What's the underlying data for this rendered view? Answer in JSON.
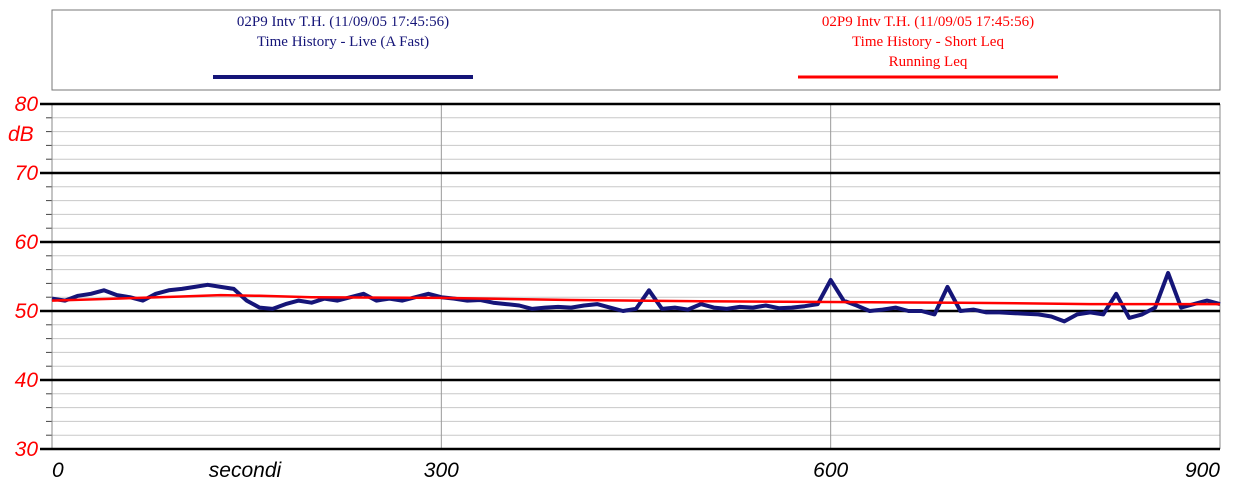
{
  "chart_data": {
    "type": "line",
    "xlabel": "secondi",
    "ylabel": "dB",
    "xlim": [
      0,
      900
    ],
    "xticks": [
      0,
      300,
      600,
      900
    ],
    "ylim": [
      30,
      80
    ],
    "yticks": [
      30,
      40,
      50,
      60,
      70,
      80
    ],
    "yminorticks": [
      32,
      34,
      36,
      38,
      42,
      44,
      46,
      48,
      52,
      54,
      56,
      58,
      62,
      64,
      66,
      68,
      72,
      74,
      76,
      78
    ],
    "grid": true,
    "series": [
      {
        "title": "02P9 Intv T.H. (11/09/05 17:45:56)",
        "name": "Time History - Live (A Fast)",
        "color": "#151578",
        "x": [
          0,
          10,
          20,
          30,
          40,
          50,
          60,
          70,
          80,
          90,
          100,
          110,
          120,
          130,
          140,
          150,
          160,
          170,
          180,
          190,
          200,
          210,
          220,
          230,
          240,
          250,
          260,
          270,
          280,
          290,
          300,
          310,
          320,
          330,
          340,
          350,
          360,
          370,
          380,
          390,
          400,
          410,
          420,
          430,
          440,
          450,
          460,
          470,
          480,
          490,
          500,
          510,
          520,
          530,
          540,
          550,
          560,
          570,
          580,
          590,
          600,
          610,
          620,
          630,
          640,
          650,
          660,
          670,
          680,
          690,
          700,
          710,
          720,
          730,
          740,
          750,
          760,
          770,
          780,
          790,
          800,
          810,
          820,
          830,
          840,
          850,
          860,
          870,
          880,
          890,
          900
        ],
        "values": [
          51.8,
          51.5,
          52.2,
          52.5,
          53,
          52.3,
          52,
          51.5,
          52.5,
          53,
          53.2,
          53.5,
          53.8,
          53.5,
          53.2,
          51.5,
          50.5,
          50.3,
          51,
          51.5,
          51.2,
          51.8,
          51.5,
          52,
          52.5,
          51.5,
          51.8,
          51.5,
          52,
          52.5,
          52,
          51.8,
          51.5,
          51.6,
          51.2,
          51,
          50.8,
          50.3,
          50.5,
          50.6,
          50.5,
          50.8,
          51,
          50.5,
          50,
          50.3,
          53,
          50.3,
          50.5,
          50.2,
          51,
          50.5,
          50.3,
          50.6,
          50.5,
          50.8,
          50.4,
          50.5,
          50.7,
          51,
          54.5,
          51.5,
          50.8,
          50,
          50.2,
          50.5,
          50,
          50,
          49.5,
          53.5,
          50,
          50.2,
          49.8,
          49.8,
          49.7,
          49.6,
          49.5,
          49.2,
          48.5,
          49.5,
          49.8,
          49.5,
          52.5,
          49,
          49.5,
          50.5,
          55.5,
          50.5,
          51,
          51.5,
          51
        ]
      },
      {
        "title": "02P9 Intv T.H. (11/09/05 17:45:56)",
        "name": "Time History - Short Leq",
        "note": "Running Leq",
        "color": "#ff0000",
        "x": [
          0,
          50,
          100,
          130,
          160,
          200,
          300,
          400,
          500,
          600,
          700,
          800,
          900
        ],
        "values": [
          51.5,
          51.8,
          52.1,
          52.3,
          52.2,
          52,
          51.9,
          51.6,
          51.4,
          51.3,
          51.2,
          51,
          51
        ]
      }
    ]
  }
}
